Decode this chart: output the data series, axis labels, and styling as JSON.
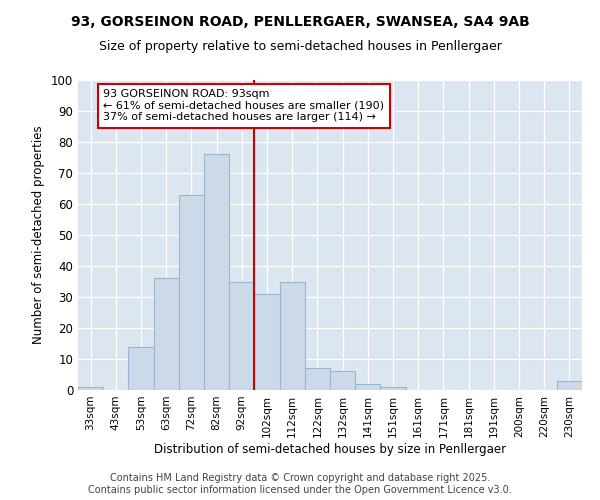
{
  "title1": "93, GORSEINON ROAD, PENLLERGAER, SWANSEA, SA4 9AB",
  "title2": "Size of property relative to semi-detached houses in Penllergaer",
  "xlabel": "Distribution of semi-detached houses by size in Penllergaer",
  "ylabel": "Number of semi-detached properties",
  "bar_labels": [
    "33sqm",
    "43sqm",
    "53sqm",
    "63sqm",
    "72sqm",
    "82sqm",
    "92sqm",
    "102sqm",
    "112sqm",
    "122sqm",
    "132sqm",
    "141sqm",
    "151sqm",
    "161sqm",
    "171sqm",
    "181sqm",
    "191sqm",
    "200sqm",
    "220sqm",
    "230sqm"
  ],
  "bar_values": [
    1,
    0,
    14,
    36,
    63,
    76,
    35,
    31,
    35,
    7,
    6,
    2,
    1,
    0,
    0,
    0,
    0,
    0,
    0,
    3
  ],
  "bar_color": "#ccd9e8",
  "bar_edge_color": "#9ab5ce",
  "vline_x": 6.5,
  "vline_color": "#cc0000",
  "annotation_text": "93 GORSEINON ROAD: 93sqm\n← 61% of semi-detached houses are smaller (190)\n37% of semi-detached houses are larger (114) →",
  "annotation_box_color": "#ffffff",
  "annotation_box_edge_color": "#cc0000",
  "ylim": [
    0,
    100
  ],
  "yticks": [
    0,
    10,
    20,
    30,
    40,
    50,
    60,
    70,
    80,
    90,
    100
  ],
  "plot_background": "#dce6f0",
  "title_fontsize": 10,
  "subtitle_fontsize": 9,
  "footer_text": "Contains HM Land Registry data © Crown copyright and database right 2025.\nContains public sector information licensed under the Open Government Licence v3.0.",
  "footer_fontsize": 7
}
